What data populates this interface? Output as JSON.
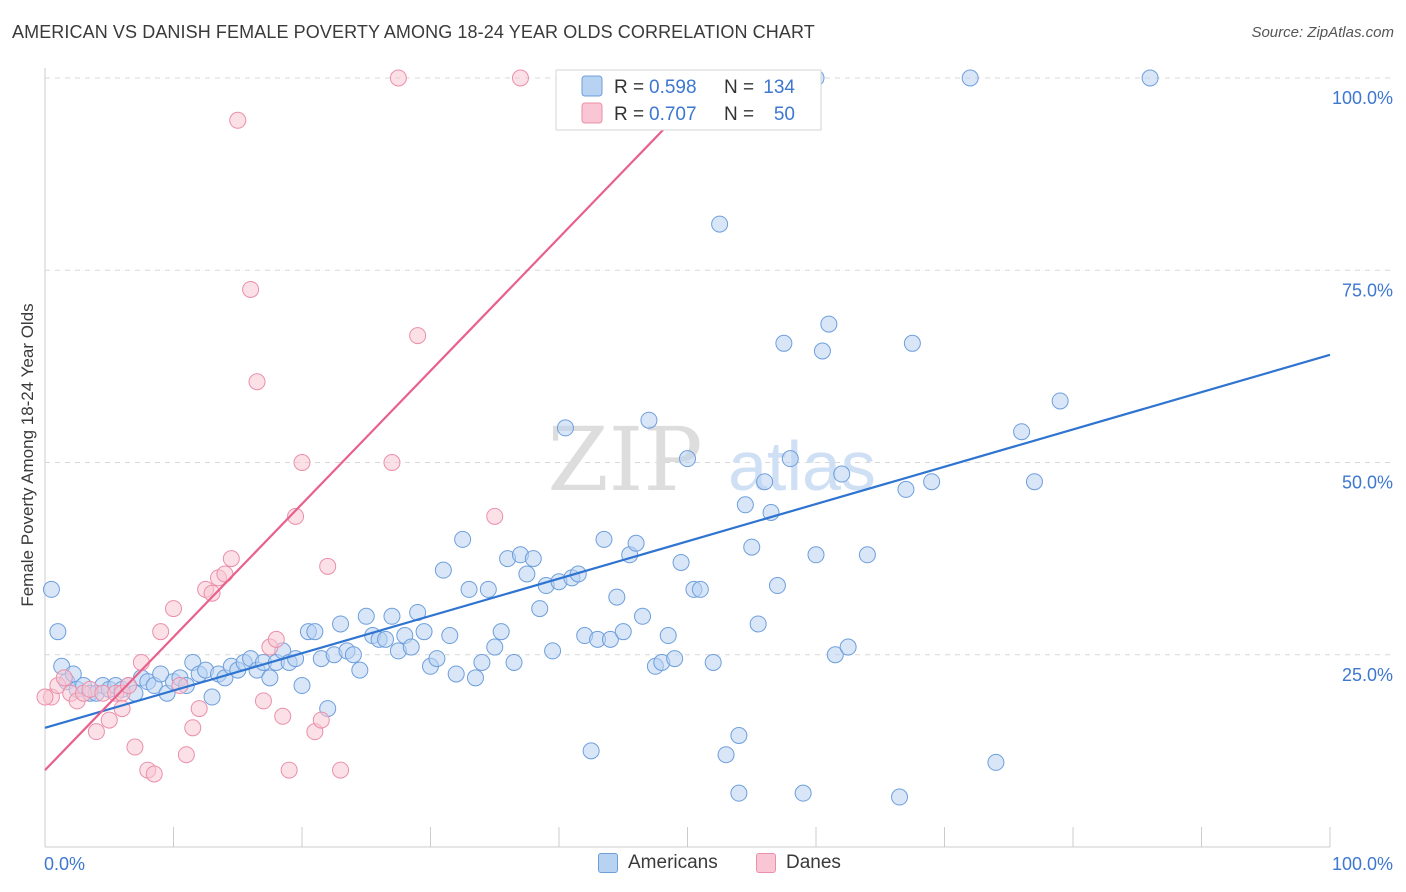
{
  "title": "AMERICAN VS DANISH FEMALE POVERTY AMONG 18-24 YEAR OLDS CORRELATION CHART",
  "source": "Source: ZipAtlas.com",
  "watermark": {
    "zip": "ZIP",
    "atlas": "atlas"
  },
  "legend_top": [
    {
      "r_label": "R =",
      "r_value": "0.598",
      "n_label": "N =",
      "n_value": "134"
    },
    {
      "r_label": "R =",
      "r_value": "0.707",
      "n_label": "N =",
      "n_value": "50"
    }
  ],
  "legend_bottom": [
    {
      "label": "Americans"
    },
    {
      "label": "Danes"
    }
  ],
  "colors": {
    "americans_fill": "#b8d2f2",
    "americans_stroke": "#6e9fdc",
    "americans_line": "#2f74d0",
    "danes_fill": "#f8c6d4",
    "danes_stroke": "#eb8faa",
    "danes_line": "#e8608c",
    "tick_text": "#3d77cf",
    "grid": "#d8d8d8"
  },
  "chart_data": {
    "type": "scatter",
    "title": "AMERICAN VS DANISH FEMALE POVERTY AMONG 18-24 YEAR OLDS CORRELATION CHART",
    "xlabel": "",
    "ylabel": "Female Poverty Among 18-24 Year Olds",
    "xlim": [
      0,
      100
    ],
    "ylim": [
      0,
      100
    ],
    "x_tick_labels": [
      "0.0%",
      "100.0%"
    ],
    "y_tick_labels": [
      "25.0%",
      "50.0%",
      "75.0%",
      "100.0%"
    ],
    "y_ticks": [
      25,
      50,
      75,
      100
    ],
    "grid": "horizontal dashed",
    "legend_position": "top-center",
    "series": [
      {
        "name": "Americans",
        "r": 0.598,
        "n": 134,
        "trendline": {
          "x": [
            0,
            100
          ],
          "y": [
            15.5,
            64
          ]
        },
        "points": [
          [
            0.5,
            33.5
          ],
          [
            1,
            28
          ],
          [
            1.3,
            23.5
          ],
          [
            1.7,
            21.5
          ],
          [
            2.2,
            22.5
          ],
          [
            2.5,
            20.5
          ],
          [
            3,
            21
          ],
          [
            3.5,
            20
          ],
          [
            4,
            20
          ],
          [
            4.5,
            21
          ],
          [
            5,
            20.5
          ],
          [
            5.5,
            21
          ],
          [
            6,
            20.5
          ],
          [
            6.5,
            21
          ],
          [
            7,
            20
          ],
          [
            7.5,
            22
          ],
          [
            8,
            21.5
          ],
          [
            8.5,
            21
          ],
          [
            9,
            22.5
          ],
          [
            9.5,
            20
          ],
          [
            10,
            21.5
          ],
          [
            10.5,
            22
          ],
          [
            11,
            21
          ],
          [
            11.5,
            24
          ],
          [
            12,
            22.5
          ],
          [
            12.5,
            23
          ],
          [
            13,
            19.5
          ],
          [
            13.5,
            22.5
          ],
          [
            14,
            22
          ],
          [
            14.5,
            23.5
          ],
          [
            15,
            23
          ],
          [
            15.5,
            24
          ],
          [
            16,
            24.5
          ],
          [
            16.5,
            23
          ],
          [
            17,
            24
          ],
          [
            17.5,
            22
          ],
          [
            18,
            24
          ],
          [
            18.5,
            25.5
          ],
          [
            19,
            24
          ],
          [
            19.5,
            24.5
          ],
          [
            20,
            21
          ],
          [
            20.5,
            28
          ],
          [
            21,
            28
          ],
          [
            21.5,
            24.5
          ],
          [
            22,
            18
          ],
          [
            22.5,
            25
          ],
          [
            23,
            29
          ],
          [
            23.5,
            25.5
          ],
          [
            24,
            25
          ],
          [
            24.5,
            23
          ],
          [
            25,
            30
          ],
          [
            25.5,
            27.5
          ],
          [
            26,
            27
          ],
          [
            26.5,
            27
          ],
          [
            27,
            30
          ],
          [
            27.5,
            25.5
          ],
          [
            28,
            27.5
          ],
          [
            28.5,
            26
          ],
          [
            29,
            30.5
          ],
          [
            29.5,
            28
          ],
          [
            30,
            23.5
          ],
          [
            30.5,
            24.5
          ],
          [
            31,
            36
          ],
          [
            31.5,
            27.5
          ],
          [
            32,
            22.5
          ],
          [
            32.5,
            40
          ],
          [
            33,
            33.5
          ],
          [
            33.5,
            22
          ],
          [
            34,
            24
          ],
          [
            34.5,
            33.5
          ],
          [
            35,
            26
          ],
          [
            35.5,
            28
          ],
          [
            36,
            37.5
          ],
          [
            36.5,
            24
          ],
          [
            37,
            38
          ],
          [
            37.5,
            35.5
          ],
          [
            38,
            37.5
          ],
          [
            38.5,
            31
          ],
          [
            39,
            34
          ],
          [
            39.5,
            25.5
          ],
          [
            40,
            34.5
          ],
          [
            40.5,
            54.5
          ],
          [
            41,
            35
          ],
          [
            41.5,
            35.5
          ],
          [
            42,
            27.5
          ],
          [
            42.5,
            12.5
          ],
          [
            43,
            27
          ],
          [
            43.5,
            40
          ],
          [
            44,
            27
          ],
          [
            44.5,
            32.5
          ],
          [
            45,
            28
          ],
          [
            45.5,
            38
          ],
          [
            46,
            39.5
          ],
          [
            46.5,
            30
          ],
          [
            47,
            55.5
          ],
          [
            47.5,
            23.5
          ],
          [
            48,
            24
          ],
          [
            48.5,
            27.5
          ],
          [
            49,
            24.5
          ],
          [
            49.5,
            37
          ],
          [
            50,
            50.5
          ],
          [
            50.5,
            33.5
          ],
          [
            51,
            33.5
          ],
          [
            52,
            24
          ],
          [
            52.5,
            81
          ],
          [
            53,
            12
          ],
          [
            54,
            14.5
          ],
          [
            54.5,
            44.5
          ],
          [
            55,
            39
          ],
          [
            55.5,
            29
          ],
          [
            56,
            47.5
          ],
          [
            56.5,
            43.5
          ],
          [
            57,
            34
          ],
          [
            57.5,
            65.5
          ],
          [
            58,
            50.5
          ],
          [
            59,
            7
          ],
          [
            60,
            38
          ],
          [
            60.5,
            64.5
          ],
          [
            61,
            68
          ],
          [
            61.5,
            25
          ],
          [
            62,
            48.5
          ],
          [
            62.5,
            26
          ],
          [
            64,
            38
          ],
          [
            67,
            46.5
          ],
          [
            67.5,
            65.5
          ],
          [
            69,
            47.5
          ],
          [
            72,
            100
          ],
          [
            74,
            11
          ],
          [
            76,
            54
          ],
          [
            77,
            47.5
          ],
          [
            79,
            58
          ],
          [
            86,
            100
          ],
          [
            66.5,
            6.5
          ],
          [
            60,
            100
          ],
          [
            54,
            7
          ]
        ]
      },
      {
        "name": "Danes",
        "r": 0.707,
        "n": 50,
        "trendline": {
          "x": [
            0,
            52
          ],
          "y": [
            10,
            100
          ]
        },
        "points": [
          [
            0.5,
            19.5
          ],
          [
            1,
            21
          ],
          [
            1.5,
            22
          ],
          [
            2,
            20
          ],
          [
            2.5,
            19
          ],
          [
            3,
            20
          ],
          [
            3.5,
            20.5
          ],
          [
            4,
            15
          ],
          [
            4.5,
            20
          ],
          [
            5,
            16.5
          ],
          [
            5.5,
            20
          ],
          [
            6,
            20
          ],
          [
            6.5,
            21
          ],
          [
            7,
            13
          ],
          [
            7.5,
            24
          ],
          [
            8,
            10
          ],
          [
            8.5,
            9.5
          ],
          [
            9,
            28
          ],
          [
            10,
            31
          ],
          [
            10.5,
            21
          ],
          [
            11,
            12
          ],
          [
            11.5,
            15.5
          ],
          [
            12,
            18
          ],
          [
            12.5,
            33.5
          ],
          [
            13,
            33
          ],
          [
            13.5,
            35
          ],
          [
            14,
            35.5
          ],
          [
            14.5,
            37.5
          ],
          [
            15,
            94.5
          ],
          [
            16,
            72.5
          ],
          [
            16.5,
            60.5
          ],
          [
            17,
            19
          ],
          [
            17.5,
            26
          ],
          [
            18,
            27
          ],
          [
            18.5,
            17
          ],
          [
            19,
            10
          ],
          [
            19.5,
            43
          ],
          [
            20,
            50
          ],
          [
            21,
            15
          ],
          [
            21.5,
            16.5
          ],
          [
            22,
            36.5
          ],
          [
            23,
            10
          ],
          [
            27,
            50
          ],
          [
            29,
            66.5
          ],
          [
            35,
            43
          ],
          [
            37,
            100
          ],
          [
            42.5,
            100
          ],
          [
            27.5,
            100
          ],
          [
            0,
            19.5
          ],
          [
            6,
            18
          ]
        ]
      }
    ]
  }
}
